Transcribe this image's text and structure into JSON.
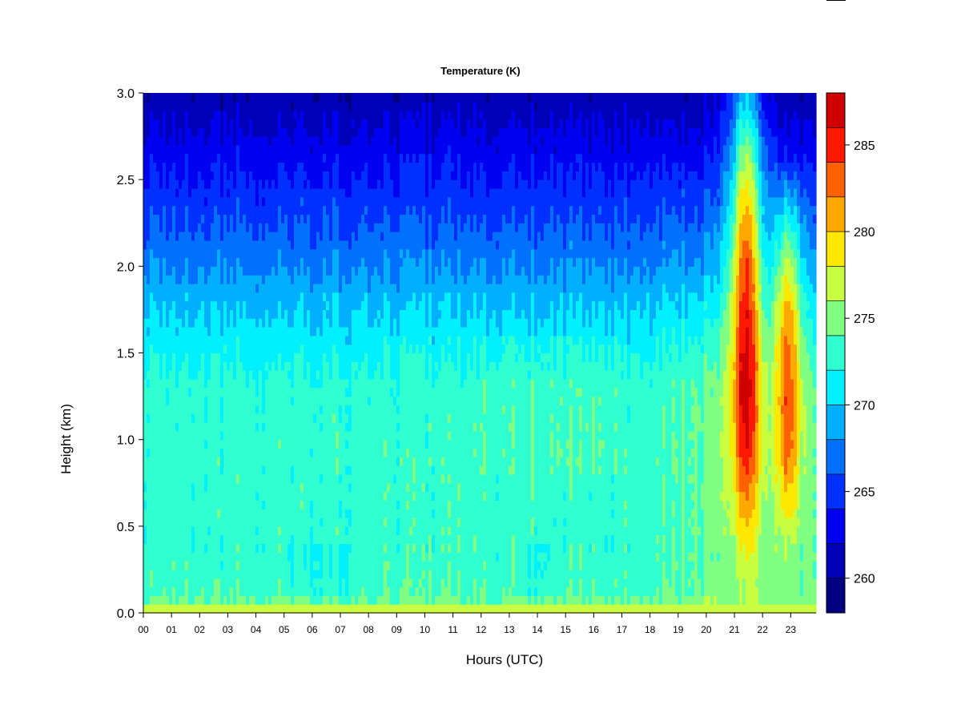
{
  "chart_data": {
    "type": "heatmap",
    "title": "Temperature (K)",
    "xlabel": "Hours (UTC)",
    "ylabel": "Height (km)",
    "xlim": [
      0,
      23.9
    ],
    "ylim": [
      0.0,
      3.0
    ],
    "x_ticks": [
      0,
      1,
      2,
      3,
      4,
      5,
      6,
      7,
      8,
      9,
      10,
      11,
      12,
      13,
      14,
      15,
      16,
      17,
      18,
      19,
      20,
      21,
      22,
      23
    ],
    "x_tick_labels": [
      "00",
      "01",
      "02",
      "03",
      "04",
      "05",
      "06",
      "07",
      "08",
      "09",
      "10",
      "11",
      "12",
      "13",
      "14",
      "15",
      "16",
      "17",
      "18",
      "19",
      "20",
      "21",
      "22",
      "23"
    ],
    "y_ticks": [
      0.0,
      0.5,
      1.0,
      1.5,
      2.0,
      2.5,
      3.0
    ],
    "y_tick_labels": [
      "0.0",
      "0.5",
      "1.0",
      "1.5",
      "2.0",
      "2.5",
      "3.0"
    ],
    "colorbar": {
      "min": 258,
      "max": 288,
      "levels": [
        258,
        260,
        262,
        264,
        266,
        268,
        270,
        272,
        274,
        276,
        278,
        280,
        282,
        284,
        286,
        288
      ],
      "colors": [
        "#000080",
        "#0000b8",
        "#0000f0",
        "#0030ff",
        "#0070ff",
        "#00b0ff",
        "#00f0ff",
        "#30ffd0",
        "#80ff80",
        "#c8ff40",
        "#ffe800",
        "#ffa800",
        "#ff6000",
        "#ff1800",
        "#d00000",
        "#800000"
      ],
      "tick_values": [
        260,
        265,
        270,
        275,
        280,
        285
      ],
      "tick_labels": [
        "260",
        "265",
        "270",
        "275",
        "280",
        "285"
      ]
    },
    "field": {
      "description": "Temperature (K) as function of hour (x) and height in km (y)",
      "heights_km": [
        0.0,
        0.02,
        0.05,
        0.1,
        0.3,
        0.5,
        0.7,
        1.0,
        1.3,
        1.5,
        1.8,
        2.0,
        2.3,
        2.5,
        2.8,
        3.0
      ],
      "base_profile_K": [
        276.5,
        276,
        275,
        273.6,
        273,
        273,
        273,
        273,
        272.8,
        271.6,
        269.5,
        267.8,
        265.5,
        264.2,
        262,
        260.5
      ],
      "warm_events": [
        {
          "center_hour": 21.4,
          "half_width_hours": 0.55,
          "peak_K": 285.5,
          "height_range_km": [
            0.5,
            2.9
          ]
        },
        {
          "center_hour": 22.9,
          "half_width_hours": 0.45,
          "peak_K": 282.0,
          "height_range_km": [
            0.55,
            2.2
          ]
        }
      ]
    }
  }
}
